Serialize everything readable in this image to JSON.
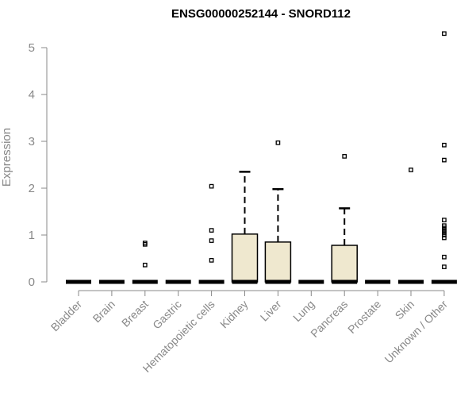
{
  "chart_data": {
    "type": "boxplot",
    "title": "ENSG00000252144 - SNORD112",
    "ylabel": "Expression",
    "xlabel": "",
    "ylim": [
      0,
      5.3
    ],
    "yticks": [
      0,
      1,
      2,
      3,
      4,
      5
    ],
    "box_fill": "#efe8cf",
    "categories": [
      "Bladder",
      "Brain",
      "Breast",
      "Gastric",
      "Hematopoietic cells",
      "Kidney",
      "Liver",
      "Lung",
      "Pancreas",
      "Prostate",
      "Skin",
      "Unknown / Other"
    ],
    "boxes": [
      {
        "category": "Bladder",
        "q1": 0,
        "median": 0,
        "q3": 0,
        "whisker_high": 0,
        "outliers": []
      },
      {
        "category": "Brain",
        "q1": 0,
        "median": 0,
        "q3": 0,
        "whisker_high": 0,
        "outliers": []
      },
      {
        "category": "Breast",
        "q1": 0,
        "median": 0,
        "q3": 0,
        "whisker_high": 0,
        "outliers": [
          0.36,
          0.8,
          0.83
        ]
      },
      {
        "category": "Gastric",
        "q1": 0,
        "median": 0,
        "q3": 0,
        "whisker_high": 0,
        "outliers": []
      },
      {
        "category": "Hematopoietic cells",
        "q1": 0,
        "median": 0,
        "q3": 0,
        "whisker_high": 0,
        "outliers": [
          0.46,
          0.88,
          1.1,
          2.04
        ]
      },
      {
        "category": "Kidney",
        "q1": 0,
        "median": 0,
        "q3": 1.02,
        "whisker_high": 2.35,
        "outliers": []
      },
      {
        "category": "Liver",
        "q1": 0,
        "median": 0,
        "q3": 0.85,
        "whisker_high": 1.98,
        "outliers": [
          2.97
        ]
      },
      {
        "category": "Lung",
        "q1": 0,
        "median": 0,
        "q3": 0,
        "whisker_high": 0,
        "outliers": []
      },
      {
        "category": "Pancreas",
        "q1": 0,
        "median": 0,
        "q3": 0.78,
        "whisker_high": 1.57,
        "outliers": [
          2.68
        ]
      },
      {
        "category": "Prostate",
        "q1": 0,
        "median": 0,
        "q3": 0,
        "whisker_high": 0,
        "outliers": []
      },
      {
        "category": "Skin",
        "q1": 0,
        "median": 0,
        "q3": 0,
        "whisker_high": 0,
        "outliers": [
          2.39
        ]
      },
      {
        "category": "Unknown / Other",
        "q1": 0,
        "median": 0,
        "q3": 0,
        "whisker_high": 0,
        "outliers": [
          0.32,
          0.53,
          0.94,
          1.0,
          1.05,
          1.1,
          1.15,
          1.2,
          1.32,
          2.6,
          2.92,
          5.3
        ]
      }
    ]
  }
}
